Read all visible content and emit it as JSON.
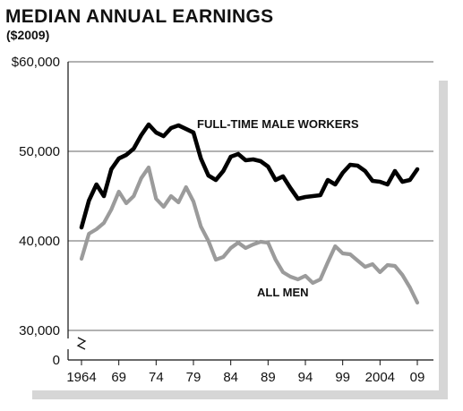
{
  "chart_data": {
    "type": "line",
    "title": "MEDIAN ANNUAL EARNINGS",
    "subtitle": "($2009)",
    "xlabel": "",
    "ylabel": "",
    "x_ticks": [
      "1964",
      "69",
      "74",
      "79",
      "84",
      "89",
      "94",
      "99",
      "2004",
      "09"
    ],
    "y_ticks": [
      "$60,000",
      "50,000",
      "40,000",
      "30,000",
      "0"
    ],
    "ylim": [
      30000,
      60000
    ],
    "y_axis_break": true,
    "grid": true,
    "series": [
      {
        "name": "FULL-TIME MALE WORKERS",
        "color": "#000000",
        "x": [
          1964,
          1965,
          1966,
          1967,
          1968,
          1969,
          1970,
          1971,
          1972,
          1973,
          1974,
          1975,
          1976,
          1977,
          1978,
          1979,
          1980,
          1981,
          1982,
          1983,
          1984,
          1985,
          1986,
          1987,
          1988,
          1989,
          1990,
          1991,
          1992,
          1993,
          1994,
          1995,
          1996,
          1997,
          1998,
          1999,
          2000,
          2001,
          2002,
          2003,
          2004,
          2005,
          2006,
          2007,
          2008,
          2009
        ],
        "values": [
          41500,
          44500,
          46300,
          45000,
          48000,
          49200,
          49600,
          50300,
          51800,
          53000,
          52100,
          51700,
          52600,
          52900,
          52500,
          52100,
          49200,
          47300,
          46800,
          47800,
          49400,
          49700,
          49000,
          49100,
          48900,
          48300,
          46800,
          47200,
          45900,
          44700,
          44900,
          45000,
          45100,
          46800,
          46300,
          47600,
          48500,
          48400,
          47800,
          46700,
          46600,
          46300,
          47800,
          46600,
          46800,
          48000
        ]
      },
      {
        "name": "ALL MEN",
        "color": "#9b9b9b",
        "x": [
          1964,
          1965,
          1966,
          1967,
          1968,
          1969,
          1970,
          1971,
          1972,
          1973,
          1974,
          1975,
          1976,
          1977,
          1978,
          1979,
          1980,
          1981,
          1982,
          1983,
          1984,
          1985,
          1986,
          1987,
          1988,
          1989,
          1990,
          1991,
          1992,
          1993,
          1994,
          1995,
          1996,
          1997,
          1998,
          1999,
          2000,
          2001,
          2002,
          2003,
          2004,
          2005,
          2006,
          2007,
          2008,
          2009
        ],
        "values": [
          38000,
          40800,
          41300,
          42000,
          43500,
          45500,
          44200,
          45000,
          47000,
          48200,
          44700,
          43800,
          45000,
          44300,
          46000,
          44400,
          41600,
          40000,
          37900,
          38200,
          39200,
          39800,
          39200,
          39600,
          39900,
          39800,
          37900,
          36500,
          36000,
          35700,
          36100,
          35300,
          35700,
          37600,
          39400,
          38600,
          38500,
          37800,
          37100,
          37400,
          36500,
          37300,
          37200,
          36200,
          34800,
          33100
        ]
      }
    ]
  }
}
